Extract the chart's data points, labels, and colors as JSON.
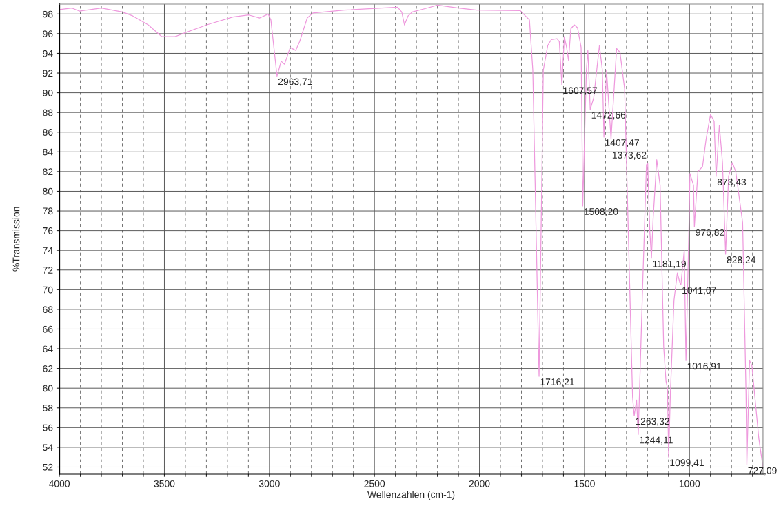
{
  "chart_data": {
    "type": "line",
    "xlabel": "Wellenzahlen (cm-1)",
    "ylabel": "%Transmission",
    "xlim": [
      4000,
      650
    ],
    "ylim": [
      51.3,
      99
    ],
    "xticks": [
      4000,
      {
        "value": 3900,
        "label": null
      },
      {
        "value": 3800,
        "label": null
      },
      {
        "value": 3700,
        "label": null
      },
      {
        "value": 3600,
        "label": null
      },
      3500,
      {
        "value": 3400,
        "label": null
      },
      {
        "value": 3300,
        "label": null
      },
      {
        "value": 3200,
        "label": null
      },
      {
        "value": 3100,
        "label": null
      },
      3000,
      {
        "value": 2900,
        "label": null
      },
      {
        "value": 2800,
        "label": null
      },
      {
        "value": 2700,
        "label": null
      },
      {
        "value": 2600,
        "label": null
      },
      2500,
      {
        "value": 2400,
        "label": null
      },
      {
        "value": 2300,
        "label": null
      },
      {
        "value": 2200,
        "label": null
      },
      {
        "value": 2100,
        "label": null
      },
      2000,
      {
        "value": 1900,
        "label": null
      },
      {
        "value": 1800,
        "label": null
      },
      {
        "value": 1700,
        "label": null
      },
      {
        "value": 1600,
        "label": null
      },
      1500,
      {
        "value": 1400,
        "label": null
      },
      {
        "value": 1300,
        "label": null
      },
      {
        "value": 1200,
        "label": null
      },
      {
        "value": 1100,
        "label": null
      },
      1000,
      {
        "value": 900,
        "label": null
      },
      {
        "value": 800,
        "label": null
      },
      {
        "value": 700,
        "label": null
      }
    ],
    "yticks": [
      52,
      54,
      56,
      58,
      60,
      62,
      64,
      66,
      68,
      70,
      72,
      74,
      76,
      78,
      80,
      82,
      84,
      86,
      88,
      90,
      92,
      94,
      96,
      98
    ],
    "grid": true,
    "series": [
      {
        "color": "#ee99dd",
        "x": [
          4000,
          3940,
          3905,
          3800,
          3700,
          3650,
          3577,
          3512,
          3450,
          3400,
          3298,
          3174,
          3098,
          3046,
          3006,
          2993,
          2963.71,
          2944,
          2928,
          2901,
          2875,
          2856,
          2820,
          2793,
          2643,
          2390,
          2370,
          2357,
          2340,
          2320,
          2250,
          2200,
          2100,
          2013,
          1806,
          1795,
          1762,
          1746,
          1716.21,
          1696,
          1675,
          1658,
          1631,
          1620,
          1607.57,
          1596,
          1585,
          1576,
          1565,
          1549,
          1533,
          1516,
          1508.2,
          1491,
          1484,
          1472.66,
          1456,
          1429,
          1415,
          1407.47,
          1395,
          1373.62,
          1347,
          1331,
          1309,
          1271,
          1263.32,
          1252,
          1244.11,
          1222,
          1205,
          1199,
          1189,
          1181.19,
          1173,
          1156,
          1140,
          1123,
          1112,
          1105,
          1099.41,
          1091,
          1074,
          1058,
          1047,
          1041.07,
          1025,
          1016.91,
          1003,
          998,
          981,
          976.82,
          960,
          938,
          921,
          900,
          883,
          873.43,
          858,
          843,
          828.24,
          814,
          796,
          780,
          747,
          731,
          727.09,
          714,
          703,
          670,
          651
        ],
        "values": [
          98.45,
          98.6,
          98.3,
          98.6,
          98.2,
          97.8,
          96.9,
          95.7,
          95.7,
          96.1,
          96.9,
          97.7,
          97.9,
          97.6,
          98.0,
          97.4,
          91.7,
          93.2,
          92.9,
          94.6,
          94.3,
          95.2,
          97.6,
          98.1,
          98.4,
          98.7,
          98.2,
          96.9,
          97.8,
          98.2,
          98.6,
          98.9,
          98.6,
          98.4,
          98.35,
          98.1,
          97.4,
          92.3,
          61.2,
          92.3,
          94.8,
          95.4,
          95.5,
          95.2,
          90.8,
          95.7,
          94.6,
          93.3,
          96.5,
          96.9,
          96.6,
          94.6,
          78.5,
          92.3,
          94.3,
          88.3,
          89.5,
          94.8,
          92.3,
          85.5,
          92.3,
          85.3,
          94.5,
          94.1,
          90.4,
          59.1,
          57.2,
          58.8,
          55.3,
          71.2,
          82.7,
          82.8,
          75.9,
          73.2,
          77.3,
          83.2,
          80.6,
          64.2,
          60.7,
          60.0,
          53.0,
          59.5,
          68.9,
          71.7,
          70.8,
          70.5,
          74.0,
          62.8,
          75.9,
          81.8,
          80.6,
          76.4,
          82.0,
          82.5,
          85.3,
          87.8,
          87.1,
          81.5,
          86.7,
          82.9,
          73.6,
          81.5,
          82.9,
          82.0,
          76.8,
          59.5,
          52.2,
          62.8,
          62.3,
          54.9,
          52.1
        ]
      }
    ],
    "annotations": [
      {
        "text": "2963,71",
        "x": 2963.71,
        "y": 91.7
      },
      {
        "text": "1716,21",
        "x": 1716.21,
        "y": 61.2
      },
      {
        "text": "1607,57",
        "x": 1607.57,
        "y": 90.8
      },
      {
        "text": "1508,20",
        "x": 1508.2,
        "y": 78.5
      },
      {
        "text": "1472,66",
        "x": 1472.66,
        "y": 88.3
      },
      {
        "text": "1407,47",
        "x": 1407.47,
        "y": 85.5
      },
      {
        "text": "1373,62",
        "x": 1373.62,
        "y": 85.3
      },
      {
        "text": "1263,32",
        "x": 1263.32,
        "y": 57.2
      },
      {
        "text": "1244,11",
        "x": 1244.11,
        "y": 55.3
      },
      {
        "text": "1181,19",
        "x": 1181.19,
        "y": 73.2
      },
      {
        "text": "1099,41",
        "x": 1099.41,
        "y": 53.0
      },
      {
        "text": "1041,07",
        "x": 1041.07,
        "y": 70.5
      },
      {
        "text": "1016,91",
        "x": 1016.91,
        "y": 62.8
      },
      {
        "text": "976,82",
        "x": 976.82,
        "y": 76.4
      },
      {
        "text": "873,43",
        "x": 873.43,
        "y": 81.5
      },
      {
        "text": "828,24",
        "x": 828.24,
        "y": 73.6
      },
      {
        "text": "727,09",
        "x": 727.09,
        "y": 52.2
      }
    ]
  }
}
